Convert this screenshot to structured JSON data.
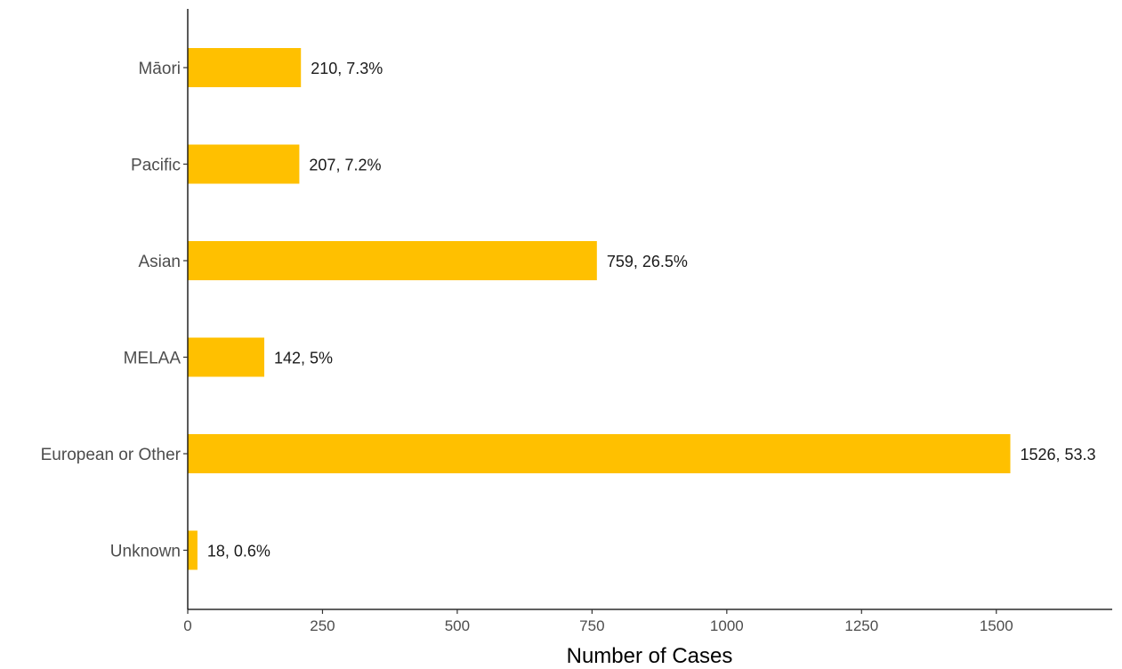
{
  "chart_data": {
    "type": "bar",
    "orientation": "horizontal",
    "categories": [
      "Māori",
      "Pacific",
      "Asian",
      "MELAA",
      "European or Other",
      "Unknown"
    ],
    "values": [
      210,
      207,
      759,
      142,
      1526,
      18
    ],
    "data_labels": [
      "210, 7.3%",
      "207, 7.2%",
      "759, 26.5%",
      "142, 5%",
      "1526, 53.3",
      "18, 0.6%"
    ],
    "xlabel": "Number of Cases",
    "ylabel": "",
    "xlim": [
      0,
      1715
    ],
    "xticks": [
      0,
      250,
      500,
      750,
      1000,
      1250,
      1500
    ],
    "grid": false,
    "bar_color": "#FFC000"
  }
}
